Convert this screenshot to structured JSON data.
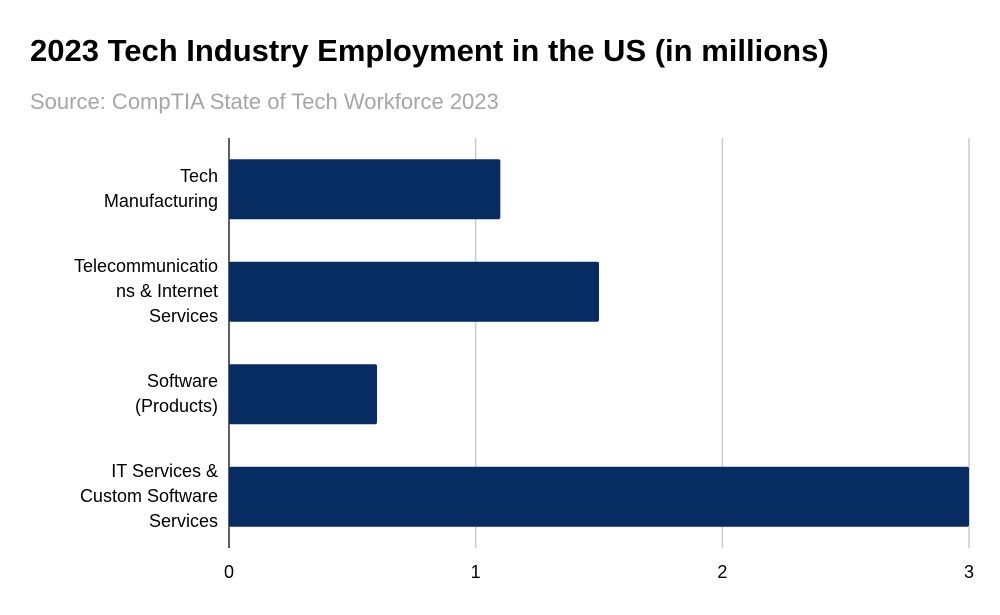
{
  "chart_data": {
    "type": "hbar",
    "title": "2023 Tech Industry Employment in the US (in millions)",
    "subtitle": "Source: CompTIA State of Tech Workforce 2023",
    "categories": [
      "Tech Manufacturing",
      "Telecommunications & Internet Services",
      "Software (Products)",
      "IT Services & Custom Software Services"
    ],
    "values": [
      1.1,
      1.5,
      0.6,
      3
    ],
    "color": "#062c62",
    "xlim": [
      0,
      3
    ],
    "xticks": [
      0,
      1,
      2,
      3
    ],
    "grid": true
  }
}
